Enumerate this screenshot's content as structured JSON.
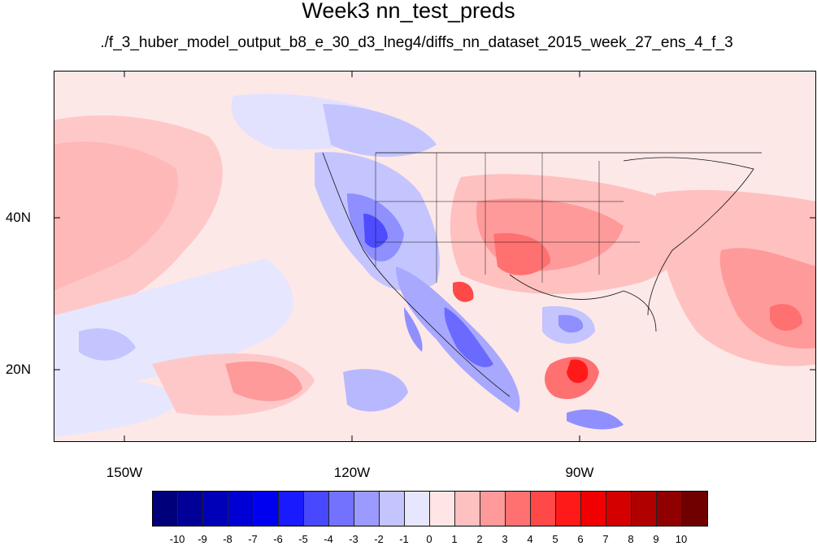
{
  "title": "Week3 nn_test_preds",
  "subtitle": "./f_3_huber_model_output_b8_e_30_d3_lneg4/diffs_nn_dataset_2015_week_27_ens_4_f_3",
  "map": {
    "region": "North America / eastern Pacific",
    "lat_labels": [
      "40N",
      "20N"
    ],
    "lon_labels": [
      "150W",
      "120W",
      "90W"
    ],
    "colormap_note": "blue-white-red diverging",
    "background_color": "#fde8e8"
  },
  "legend": {
    "labels": [
      "-10",
      "-9",
      "-8",
      "-7",
      "-6",
      "-5",
      "-4",
      "-3",
      "-2",
      "-1",
      "0",
      "1",
      "2",
      "3",
      "4",
      "5",
      "6",
      "7",
      "8",
      "9",
      "10"
    ],
    "colors": [
      "#00007a",
      "#000099",
      "#0000b8",
      "#0000d6",
      "#0000f0",
      "#1a1aff",
      "#4848ff",
      "#7272ff",
      "#9a9aff",
      "#c4c4ff",
      "#e6e6ff",
      "#ffe5e5",
      "#ffc0c0",
      "#ff9a9a",
      "#ff7070",
      "#ff4848",
      "#ff1a1a",
      "#f00000",
      "#d40000",
      "#b00000",
      "#900000",
      "#700000"
    ]
  }
}
